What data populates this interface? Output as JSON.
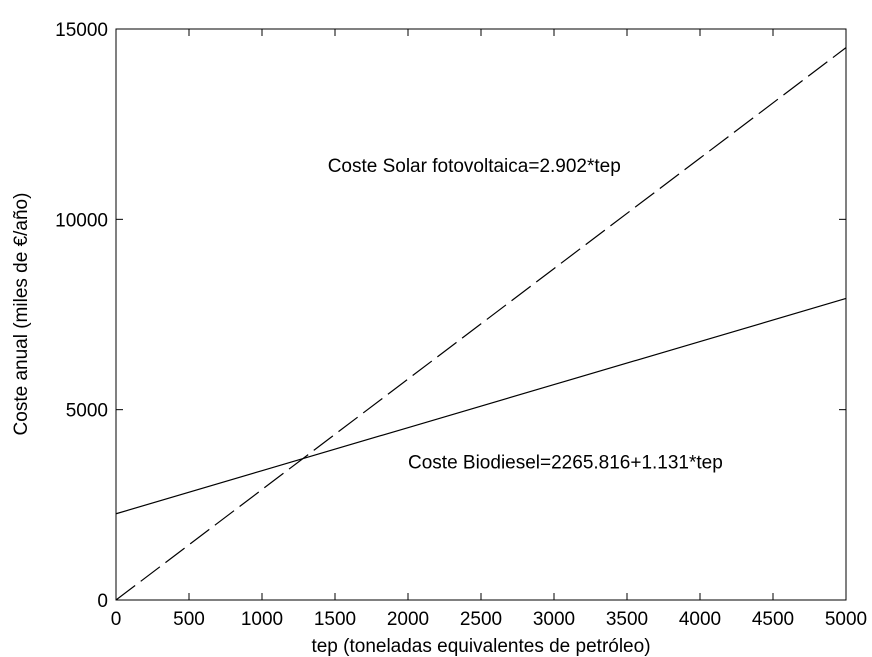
{
  "chart_data": {
    "type": "line",
    "title": "",
    "xlabel": "tep (toneladas equivalentes de petróleo)",
    "ylabel": "Coste anual (miles de €/año)",
    "xlim": [
      0,
      5000
    ],
    "ylim": [
      0,
      15000
    ],
    "xticks": [
      0,
      500,
      1000,
      1500,
      2000,
      2500,
      3000,
      3500,
      4000,
      4500,
      5000
    ],
    "yticks": [
      0,
      5000,
      10000,
      15000
    ],
    "grid": false,
    "series": [
      {
        "line_style": "dashed",
        "x": [
          0,
          1000,
          2000,
          3000,
          4000,
          5000
        ],
        "y": [
          0,
          2902,
          5804,
          8706,
          11608,
          14510
        ]
      },
      {
        "line_style": "solid",
        "x": [
          0,
          1000,
          2000,
          3000,
          4000,
          5000
        ],
        "y": [
          2265.816,
          3396.816,
          4527.816,
          5658.816,
          6789.816,
          7920.816
        ]
      }
    ],
    "annotations": [
      {
        "text": "Coste Solar fotovoltaica=2.902*tep",
        "x": 1450,
        "y": 11250
      },
      {
        "text": "Coste Biodiesel=2265.816+1.131*tep",
        "x": 2000,
        "y": 3450
      }
    ],
    "colors": {
      "line": "#000000",
      "axes": "#000000",
      "background": "#ffffff"
    }
  }
}
